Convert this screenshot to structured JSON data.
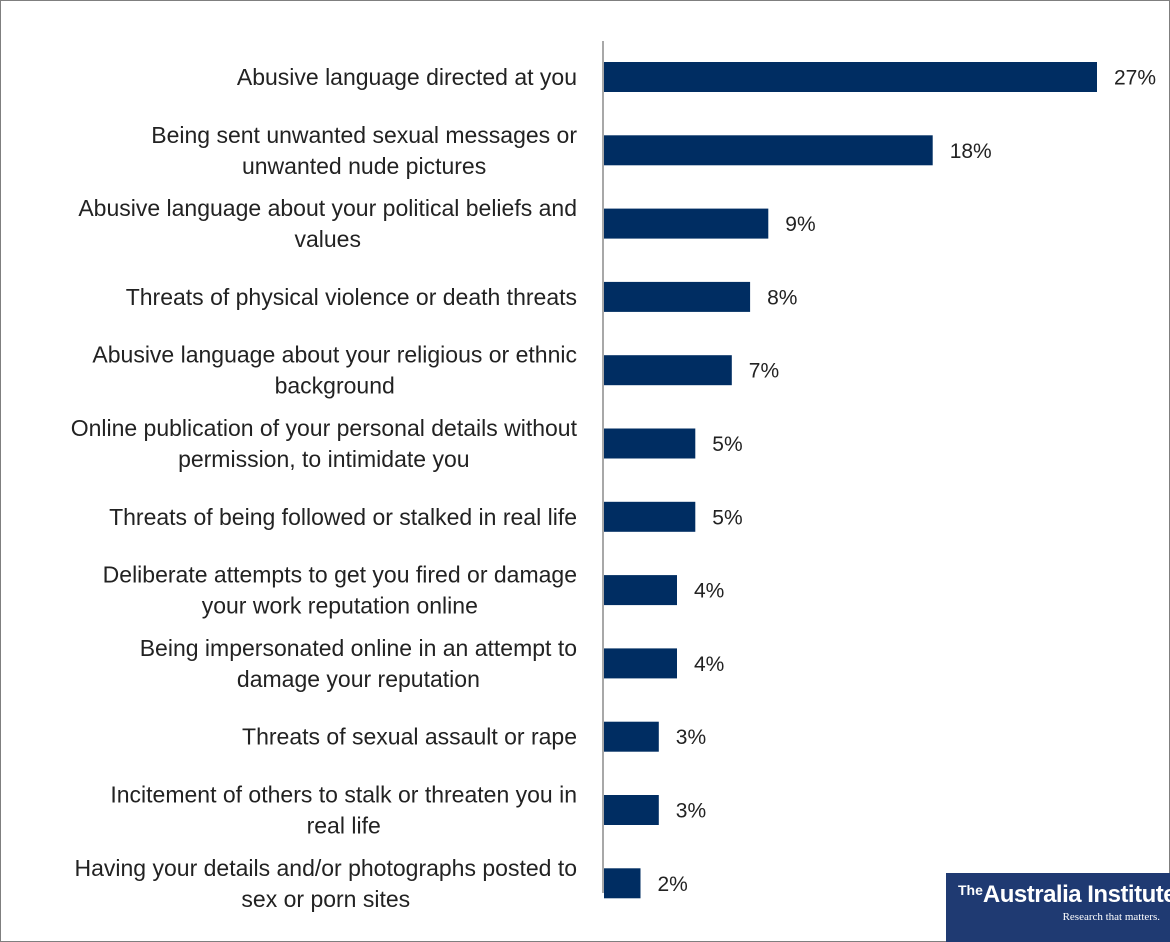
{
  "chart_data": {
    "type": "bar",
    "orientation": "horizontal",
    "categories": [
      [
        "Abusive language directed at you"
      ],
      [
        "Being sent unwanted sexual messages or",
        "unwanted nude pictures"
      ],
      [
        "Abusive language about your political beliefs and",
        "values"
      ],
      [
        "Threats of physical violence or death threats"
      ],
      [
        "Abusive language about your religious or ethnic",
        "background"
      ],
      [
        "Online publication of your personal details without",
        "permission, to intimidate you"
      ],
      [
        "Threats of being followed or stalked in real life"
      ],
      [
        "Deliberate attempts to get you fired or damage",
        "your work reputation online"
      ],
      [
        "Being impersonated online in an attempt to",
        "damage your reputation"
      ],
      [
        "Threats of sexual assault or rape"
      ],
      [
        "Incitement of others to stalk or threaten you in",
        "real life"
      ],
      [
        "Having your details and/or photographs posted to",
        "sex or porn sites"
      ]
    ],
    "values": [
      27,
      18,
      9,
      8,
      7,
      5,
      5,
      4,
      4,
      3,
      3,
      2
    ],
    "value_labels": [
      "27%",
      "18%",
      "9%",
      "8%",
      "7%",
      "5%",
      "5%",
      "4%",
      "4%",
      "3%",
      "3%",
      "2%"
    ],
    "unit": "%",
    "xlim": [
      0,
      27
    ],
    "grid": false,
    "legend": "none",
    "title": "",
    "xlabel": "",
    "ylabel": "",
    "bar_color": "#002d62"
  },
  "logo": {
    "prefix": "The",
    "name": "Australia Institute",
    "tagline": "Research that matters."
  }
}
